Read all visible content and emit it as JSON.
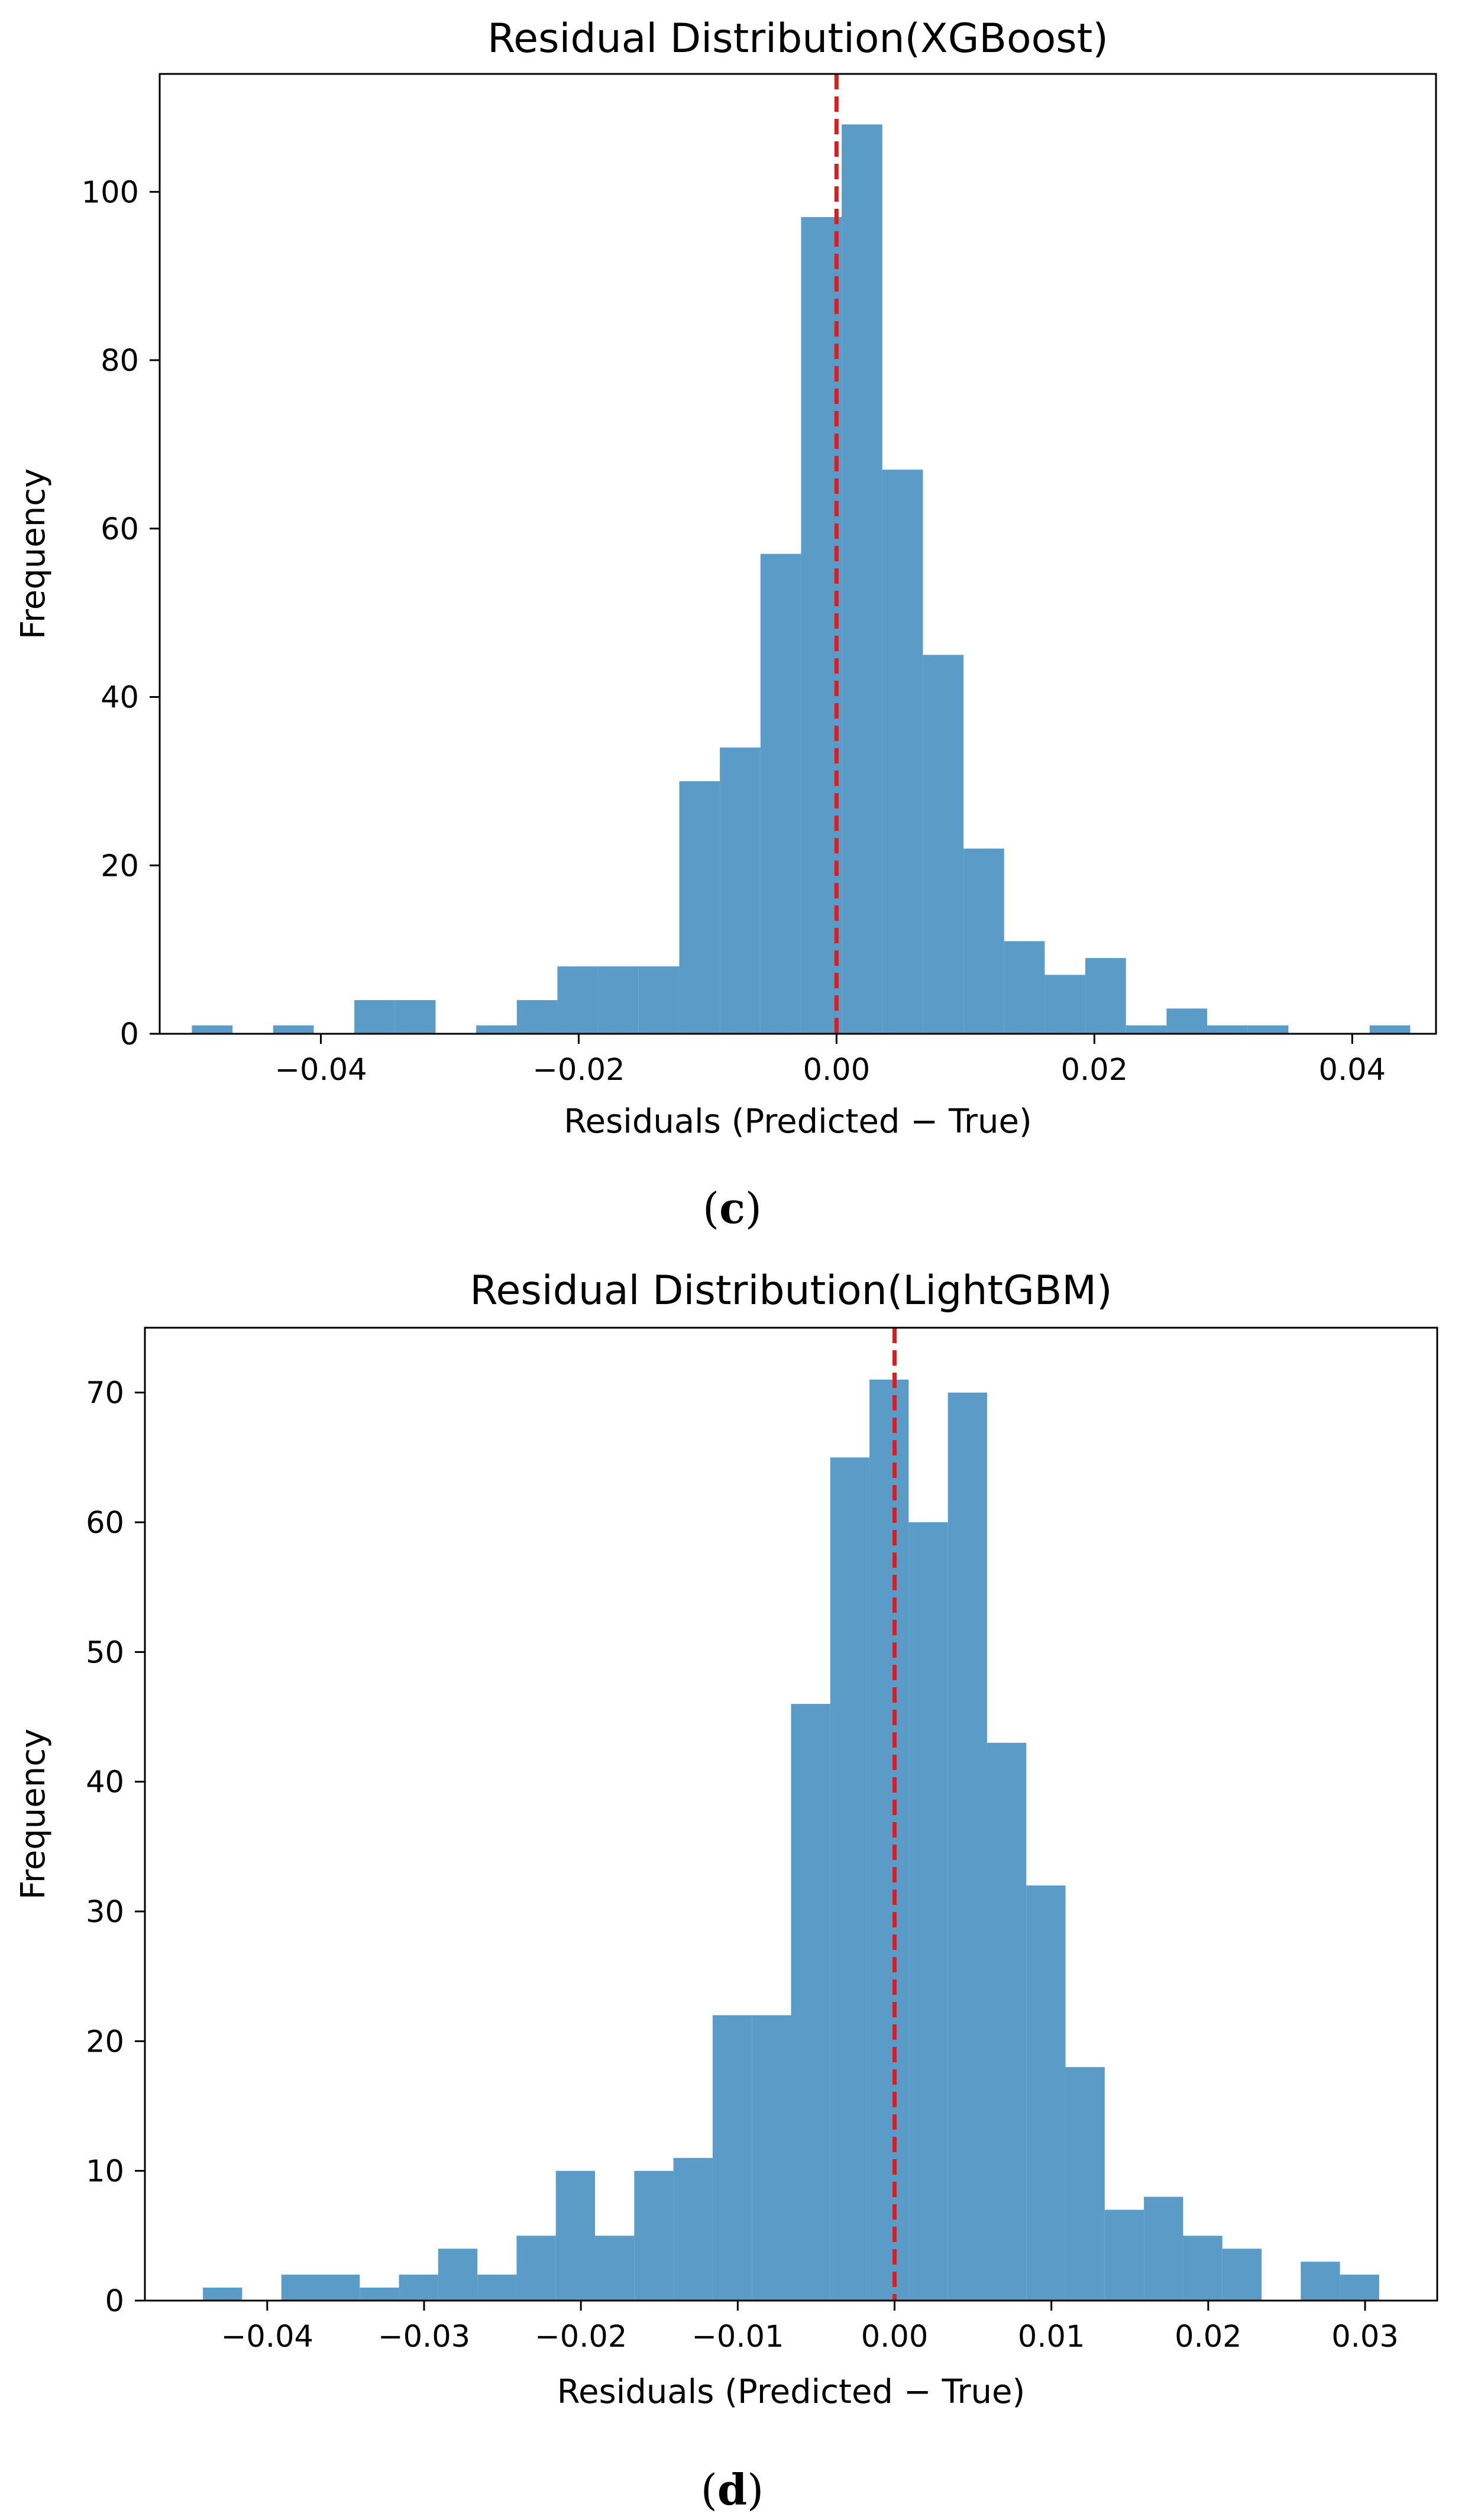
{
  "colors": {
    "bar": "#5b9bc8",
    "zero_line": "#e31a1c",
    "axis": "#000000"
  },
  "chart_data": [
    {
      "type": "bar",
      "id": "c",
      "title": "Residual Distribution(XGBoost)",
      "xlabel": "Residuals (Predicted − True)",
      "ylabel": "Frequency",
      "caption_open": "(",
      "caption_letter": "c",
      "caption_close": ")",
      "xlim": [
        -0.0525,
        0.0465
      ],
      "ylim": [
        0,
        114
      ],
      "xticks": [
        -0.04,
        -0.02,
        0.0,
        0.02,
        0.04
      ],
      "xtick_labels": [
        "−0.04",
        "−0.02",
        "0.00",
        "0.02",
        "0.04"
      ],
      "yticks": [
        0,
        20,
        40,
        60,
        80,
        100
      ],
      "ytick_labels": [
        "0",
        "20",
        "40",
        "60",
        "80",
        "100"
      ],
      "bin_start": -0.05,
      "bin_width": 0.00315,
      "values": [
        1,
        0,
        1,
        0,
        4,
        4,
        0,
        1,
        4,
        8,
        8,
        8,
        30,
        34,
        57,
        97,
        108,
        67,
        45,
        22,
        11,
        7,
        9,
        1,
        3,
        1,
        1,
        0,
        0,
        1
      ],
      "zero_line": 0.0
    },
    {
      "type": "bar",
      "id": "d",
      "title": "Residual Distribution(LightGBM)",
      "xlabel": "Residuals (Predicted − True)",
      "ylabel": "Frequency",
      "caption_open": "(",
      "caption_letter": "d",
      "caption_close": ")",
      "xlim": [
        -0.0478,
        0.0346
      ],
      "ylim": [
        0,
        75
      ],
      "xticks": [
        -0.04,
        -0.03,
        -0.02,
        -0.01,
        0.0,
        0.01,
        0.02,
        0.03
      ],
      "xtick_labels": [
        "−0.04",
        "−0.03",
        "−0.02",
        "−0.01",
        "0.00",
        "0.01",
        "0.02",
        "0.03"
      ],
      "yticks": [
        0,
        10,
        20,
        30,
        40,
        50,
        60,
        70
      ],
      "ytick_labels": [
        "0",
        "10",
        "20",
        "30",
        "40",
        "50",
        "60",
        "70"
      ],
      "bin_start": -0.0441,
      "bin_width": 0.0025,
      "values": [
        1,
        0,
        2,
        2,
        1,
        2,
        4,
        2,
        5,
        10,
        5,
        10,
        11,
        22,
        22,
        46,
        65,
        71,
        60,
        70,
        43,
        32,
        18,
        7,
        8,
        5,
        4,
        0,
        3,
        2
      ],
      "zero_line": 0.0
    }
  ]
}
